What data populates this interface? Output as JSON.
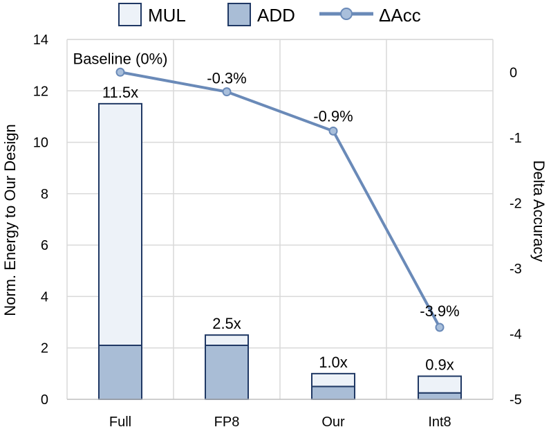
{
  "chart_data": {
    "type": "bar",
    "stacked": true,
    "categories": [
      "Full",
      "FP8",
      "Our",
      "Int8"
    ],
    "series": [
      {
        "name": "ADD",
        "values": [
          2.1,
          2.1,
          0.5,
          0.25
        ],
        "color": "#a9bdd6",
        "stroke": "#1f3864"
      },
      {
        "name": "MUL",
        "values": [
          9.4,
          0.4,
          0.5,
          0.65
        ],
        "color": "#edf2f8",
        "stroke": "#1f3864"
      }
    ],
    "bar_labels": [
      "11.5x",
      "2.5x",
      "1.0x",
      "0.9x"
    ],
    "line_series": {
      "name": "ΔAcc",
      "axis": "right",
      "values": [
        0,
        -0.3,
        -0.9,
        -3.9
      ],
      "labels": [
        "Baseline (0%)",
        "-0.3%",
        "-0.9%",
        "-3.9%"
      ],
      "color": "#6a8ab8",
      "marker_fill": "#a9bfdb"
    },
    "ylabel": "Norm. Energy to Our Design",
    "ylabel_right": "Delta Accuracy",
    "ylim": [
      0,
      14
    ],
    "yticks": [
      "0",
      "2",
      "4",
      "6",
      "8",
      "10",
      "12",
      "14"
    ],
    "ylim_right": [
      -5,
      0.5
    ],
    "yticks_right": [
      "0",
      "-1",
      "-2",
      "-3",
      "-4",
      "-5"
    ],
    "legend": [
      "MUL",
      "ADD",
      "ΔAcc"
    ],
    "legend_position": "top",
    "grid": true
  }
}
